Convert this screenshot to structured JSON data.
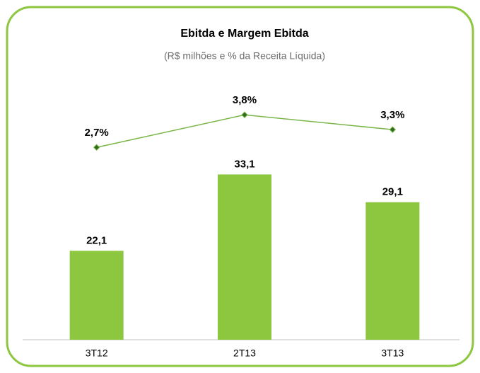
{
  "chart_data": {
    "type": "bar_line",
    "title": "Ebitda e Margem Ebitda",
    "subtitle": "(R$ milhões  e % da Receita Líquida)",
    "categories": [
      "3T12",
      "2T13",
      "3T13"
    ],
    "series": [
      {
        "type": "bar",
        "color": "#8dc63f",
        "values": [
          22.1,
          33.1,
          29.1
        ],
        "value_labels": [
          "22,1",
          "33,1",
          "29,1"
        ]
      },
      {
        "type": "line",
        "axis": "y2",
        "color": "#7ab648",
        "marker_color": "#2e6b1f",
        "values": [
          2.7,
          3.8,
          3.3
        ],
        "value_labels": [
          "2,7%",
          "3,8%",
          "3,3%"
        ]
      }
    ],
    "ylim": [
      9.3,
      47
    ],
    "y2lim": [
      -3.8,
      5.05
    ]
  }
}
